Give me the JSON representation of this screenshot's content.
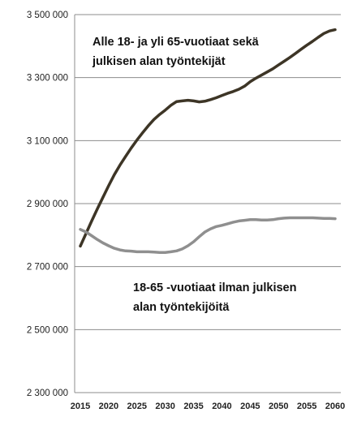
{
  "chart_data": {
    "type": "line",
    "title": "",
    "xlabel": "",
    "ylabel": "",
    "x": [
      2015,
      2016,
      2017,
      2018,
      2019,
      2020,
      2021,
      2022,
      2023,
      2024,
      2025,
      2026,
      2027,
      2028,
      2029,
      2030,
      2031,
      2032,
      2033,
      2034,
      2035,
      2036,
      2037,
      2038,
      2039,
      2040,
      2041,
      2042,
      2043,
      2044,
      2045,
      2046,
      2047,
      2048,
      2049,
      2050,
      2051,
      2052,
      2053,
      2054,
      2055,
      2056,
      2057,
      2058,
      2059,
      2060
    ],
    "x_ticks": [
      "2015",
      "2020",
      "2025",
      "2030",
      "2035",
      "2040",
      "2045",
      "2050",
      "2055",
      "2060"
    ],
    "x_tick_values": [
      2015,
      2020,
      2025,
      2030,
      2035,
      2040,
      2045,
      2050,
      2055,
      2060
    ],
    "y_ticks": [
      "2 300 000",
      "2 500 000",
      "2 700 000",
      "2 900 000",
      "3 100 000",
      "3 300 000",
      "3 500 000"
    ],
    "y_tick_values": [
      2300000,
      2500000,
      2700000,
      2900000,
      3100000,
      3300000,
      3500000
    ],
    "ylim": [
      2300000,
      3500000
    ],
    "grid": "horizontal",
    "legend": "none",
    "series": [
      {
        "color": "#3d3526",
        "values": [
          2765000,
          2805000,
          2845000,
          2883000,
          2920000,
          2957000,
          2992000,
          3022000,
          3050000,
          3077000,
          3102000,
          3125000,
          3147000,
          3167000,
          3183000,
          3197000,
          3212000,
          3224000,
          3226000,
          3228000,
          3226000,
          3223000,
          3225000,
          3230000,
          3236000,
          3243000,
          3250000,
          3256000,
          3263000,
          3273000,
          3287000,
          3298000,
          3308000,
          3318000,
          3328000,
          3340000,
          3352000,
          3364000,
          3377000,
          3390000,
          3403000,
          3415000,
          3428000,
          3440000,
          3448000,
          3452000
        ]
      },
      {
        "color": "#8f8f8f",
        "values": [
          2818000,
          2810000,
          2798000,
          2786000,
          2775000,
          2766000,
          2758000,
          2753000,
          2750000,
          2749000,
          2747000,
          2747000,
          2747000,
          2746000,
          2745000,
          2745000,
          2747000,
          2750000,
          2756000,
          2766000,
          2779000,
          2795000,
          2810000,
          2820000,
          2827000,
          2831000,
          2836000,
          2841000,
          2845000,
          2847000,
          2849000,
          2849000,
          2848000,
          2848000,
          2849000,
          2852000,
          2854000,
          2855000,
          2855000,
          2855000,
          2855000,
          2855000,
          2854000,
          2853000,
          2853000,
          2852000
        ]
      }
    ],
    "annotations": [
      {
        "lines": [
          "Alle 18- ja yli 65-vuotiaat sekä",
          "julkisen alan työntekijät"
        ]
      },
      {
        "lines": [
          "18-65 -vuotiaat ilman julkisen",
          "alan työntekijöitä"
        ]
      }
    ]
  }
}
